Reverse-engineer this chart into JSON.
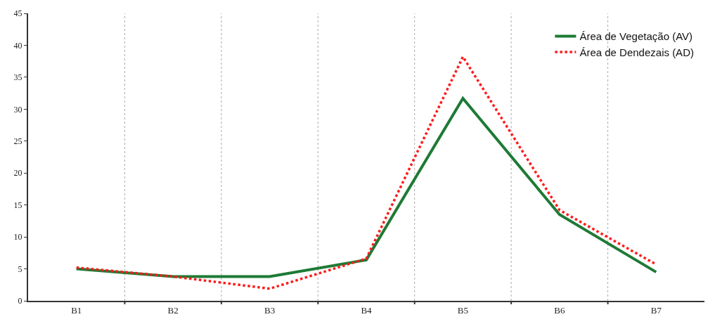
{
  "chart_data": {
    "type": "line",
    "categories": [
      "B1",
      "B2",
      "B3",
      "B4",
      "B5",
      "B6",
      "B7"
    ],
    "series": [
      {
        "name": "Área de Vegetação (AV)",
        "color": "#1e7a35",
        "line_style": "solid",
        "values": [
          5.0,
          3.8,
          3.8,
          6.4,
          31.7,
          13.5,
          4.5
        ]
      },
      {
        "name": "Área de Dendezais (AD)",
        "color": "#ff1a1a",
        "line_style": "dotted",
        "values": [
          5.2,
          3.8,
          1.9,
          6.6,
          38.2,
          14.2,
          5.7
        ]
      }
    ],
    "ylim": [
      0,
      45
    ],
    "yticks": [
      0,
      5,
      10,
      15,
      20,
      25,
      30,
      35,
      40,
      45
    ],
    "grid": "x",
    "legend": "top right",
    "marker": "none"
  }
}
